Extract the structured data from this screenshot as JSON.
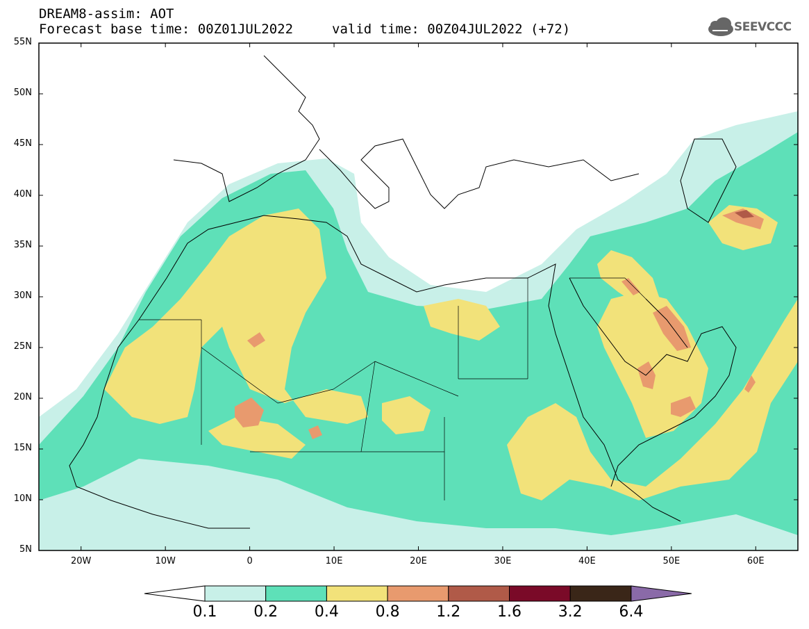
{
  "title": {
    "line1": "DREAM8-assim: AOT",
    "line2": "Forecast base time: 00Z01JUL2022",
    "valid": "valid time: 00Z04JUL2022 (+72)"
  },
  "logo": {
    "text": "SEEVCCC",
    "icon": "cloud-icon"
  },
  "axes": {
    "y_ticks": [
      "55N",
      "50N",
      "45N",
      "40N",
      "35N",
      "30N",
      "25N",
      "20N",
      "15N",
      "10N",
      "5N"
    ],
    "x_ticks": [
      "20W",
      "10W",
      "0",
      "10E",
      "20E",
      "30E",
      "40E",
      "50E",
      "60E"
    ],
    "lat_range": [
      5,
      55
    ],
    "lon_range": [
      -25,
      65
    ]
  },
  "colorbar": {
    "labels": [
      "0.1",
      "0.2",
      "0.4",
      "0.8",
      "1.2",
      "1.6",
      "3.2",
      "6.4"
    ],
    "colors": [
      "#ffffff",
      "#c8f0e8",
      "#5ee0b8",
      "#f2e27a",
      "#e89a6e",
      "#b05a48",
      "#7a0a28",
      "#3a2618",
      "#8a6aa8"
    ]
  }
}
